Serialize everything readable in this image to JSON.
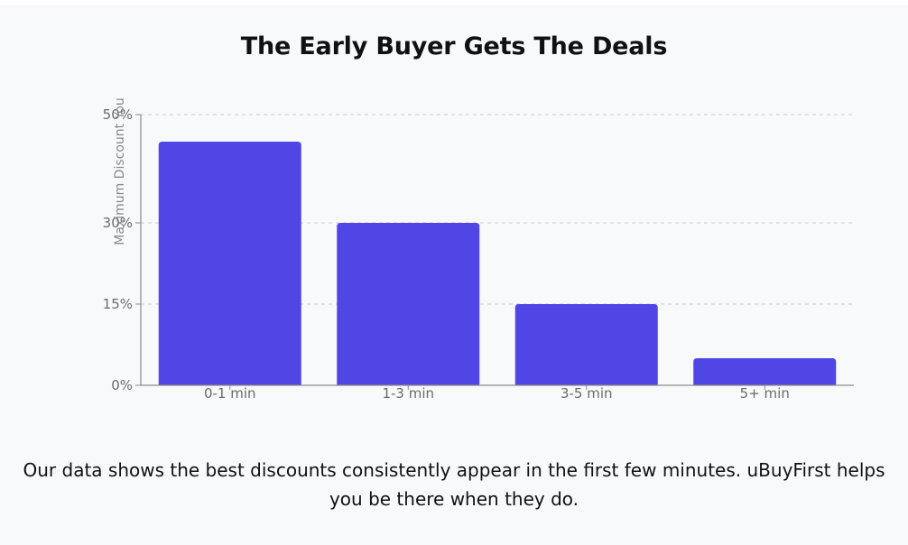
{
  "colors": {
    "bar": "#4f46e5",
    "grid": "#d4d4d8",
    "axis": "#8a8a8a"
  },
  "chart_data": {
    "type": "bar",
    "title": "The Early Buyer Gets The Deals",
    "ylabel": "Maximum Discount You",
    "categories": [
      "0-1 min",
      "1-3 min",
      "3-5 min",
      "5+ min"
    ],
    "values": [
      45,
      30,
      15,
      5
    ],
    "ylim": [
      0,
      50
    ],
    "yticks": [
      0,
      15,
      30,
      50
    ],
    "ytick_labels": [
      "0%",
      "15%",
      "30%",
      "50%"
    ],
    "grid": true
  },
  "caption": "Our data shows the best discounts consistently appear in the first few minutes. uBuyFirst helps you be there when they do."
}
